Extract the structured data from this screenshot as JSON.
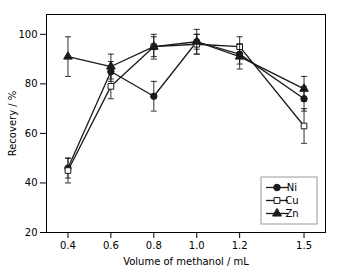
{
  "chart_data": {
    "type": "line",
    "xlabel": "Volume of methanol / mL",
    "ylabel": "Recovery / %",
    "x": [
      0.4,
      0.6,
      0.8,
      1.0,
      1.2,
      1.5
    ],
    "series": [
      {
        "name": "Ni",
        "color": "#1a1a1a",
        "marker": "circle",
        "values": [
          46,
          85,
          75,
          97,
          92,
          74
        ],
        "errors": [
          4,
          4,
          6,
          3,
          4,
          5
        ]
      },
      {
        "name": "Cu",
        "color": "#1a1a1a",
        "marker": "square-open",
        "values": [
          45,
          79,
          95,
          96,
          95,
          63
        ],
        "errors": [
          5,
          5,
          4,
          4,
          4,
          7
        ]
      },
      {
        "name": "Zn",
        "color": "#1a1a1a",
        "marker": "triangle",
        "values": [
          91,
          87,
          95,
          97,
          91,
          78
        ],
        "errors": [
          8,
          5,
          5,
          5,
          5,
          5
        ]
      }
    ],
    "xlim": [
      0.3,
      1.6
    ],
    "xticks": [
      0.4,
      0.6,
      0.8,
      {
        "value": 1.0,
        "label": "1.0"
      },
      1.2,
      1.5
    ],
    "ylim": [
      20,
      108
    ],
    "yticks": [
      20,
      40,
      60,
      80,
      100
    ],
    "grid": false,
    "legend": "lower right"
  }
}
